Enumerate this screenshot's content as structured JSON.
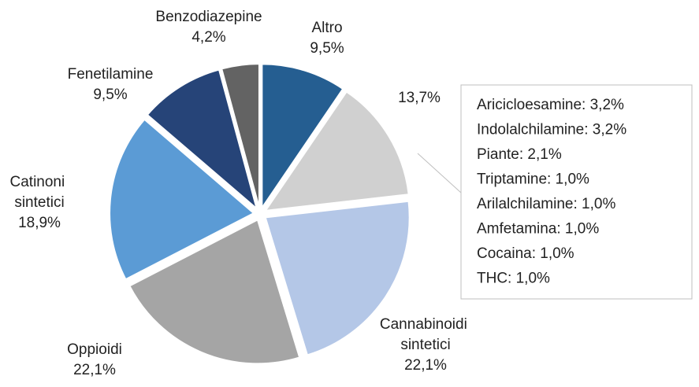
{
  "chart_data": {
    "type": "pie",
    "categories": [
      "Altro",
      null,
      "Cannabinoidi sintetici",
      "Oppioidi",
      "Catinoni sintetici",
      "Fenetilamine",
      "Benzodiazepine"
    ],
    "values": [
      9.5,
      13.7,
      22.1,
      22.1,
      18.9,
      9.5,
      4.2
    ],
    "value_labels": [
      "9,5%",
      "13,7%",
      "22,1%",
      "22,1%",
      "18,9%",
      "9,5%",
      "4,2%"
    ],
    "colors": [
      "#255e91",
      "#d0d0d0",
      "#b4c7e7",
      "#a5a5a5",
      "#5b9bd5",
      "#264478",
      "#636363"
    ],
    "breakdown": [
      "Aricicloesamine: 3,2%",
      "Indolalchilamine: 3,2%",
      "Piante: 2,1%",
      "Triptamine: 1,0%",
      "Arilalchilamine: 1,0%",
      "Amfetamina: 1,0%",
      "Cocaina: 1,0%",
      "THC: 1,0%"
    ]
  }
}
